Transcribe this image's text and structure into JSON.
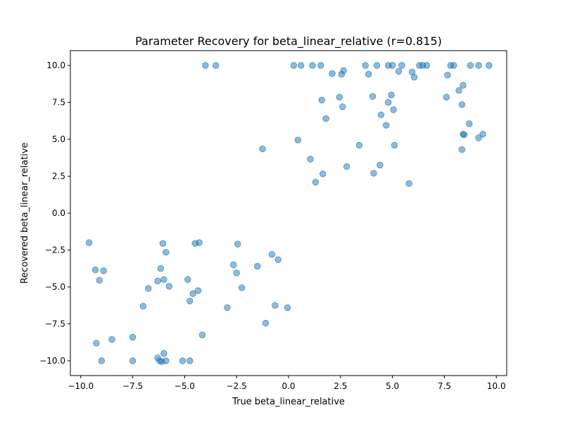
{
  "chart_data": {
    "type": "scatter",
    "title": "Parameter Recovery for beta_linear_relative (r=0.815)",
    "xlabel": "True beta_linear_relative",
    "ylabel": "Recovered beta_linear_relative",
    "xlim": [
      -10.5,
      10.5
    ],
    "ylim": [
      -11.0,
      11.0
    ],
    "xticks": [
      -10.0,
      -7.5,
      -5.0,
      -2.5,
      0.0,
      2.5,
      5.0,
      7.5,
      10.0
    ],
    "xtick_labels": [
      "−10.0",
      "−7.5",
      "−5.0",
      "−2.5",
      "0.0",
      "2.5",
      "5.0",
      "7.5",
      "10.0"
    ],
    "yticks": [
      -10.0,
      -7.5,
      -5.0,
      -2.5,
      0.0,
      2.5,
      5.0,
      7.5,
      10.0
    ],
    "ytick_labels": [
      "−10.0",
      "−7.5",
      "−5.0",
      "−2.5",
      "0.0",
      "2.5",
      "5.0",
      "7.5",
      "10.0"
    ],
    "grid": false,
    "marker_color": "#1f77b4",
    "marker_alpha": 0.5,
    "points": [
      {
        "x": -9.6,
        "y": -2.0
      },
      {
        "x": -9.3,
        "y": -3.85
      },
      {
        "x": -9.1,
        "y": -4.55
      },
      {
        "x": -8.9,
        "y": -3.9
      },
      {
        "x": -9.25,
        "y": -8.8
      },
      {
        "x": -9.0,
        "y": -10.0
      },
      {
        "x": -8.5,
        "y": -8.55
      },
      {
        "x": -7.5,
        "y": -8.4
      },
      {
        "x": -7.5,
        "y": -10.0
      },
      {
        "x": -7.0,
        "y": -6.3
      },
      {
        "x": -6.75,
        "y": -5.1
      },
      {
        "x": -6.3,
        "y": -4.6
      },
      {
        "x": -6.15,
        "y": -3.75
      },
      {
        "x": -6.05,
        "y": -2.05
      },
      {
        "x": -6.0,
        "y": -4.5
      },
      {
        "x": -5.9,
        "y": -2.65
      },
      {
        "x": -5.75,
        "y": -4.95
      },
      {
        "x": -6.3,
        "y": -9.8
      },
      {
        "x": -6.2,
        "y": -10.0
      },
      {
        "x": -6.1,
        "y": -10.05
      },
      {
        "x": -6.0,
        "y": -9.5
      },
      {
        "x": -5.9,
        "y": -10.0
      },
      {
        "x": -5.1,
        "y": -10.0
      },
      {
        "x": -4.75,
        "y": -10.0
      },
      {
        "x": -4.85,
        "y": -4.5
      },
      {
        "x": -4.75,
        "y": -5.95
      },
      {
        "x": -4.6,
        "y": -5.45
      },
      {
        "x": -4.5,
        "y": -2.05
      },
      {
        "x": -4.3,
        "y": -2.0
      },
      {
        "x": -4.35,
        "y": -5.25
      },
      {
        "x": -4.15,
        "y": -8.25
      },
      {
        "x": -2.95,
        "y": -6.4
      },
      {
        "x": -2.65,
        "y": -3.5
      },
      {
        "x": -2.5,
        "y": -4.05
      },
      {
        "x": -2.45,
        "y": -2.1
      },
      {
        "x": -2.25,
        "y": -5.05
      },
      {
        "x": -1.5,
        "y": -3.6
      },
      {
        "x": -1.1,
        "y": -7.45
      },
      {
        "x": -0.8,
        "y": -2.8
      },
      {
        "x": -0.65,
        "y": -6.25
      },
      {
        "x": -0.5,
        "y": -3.15
      },
      {
        "x": -0.05,
        "y": -6.4
      },
      {
        "x": -4.0,
        "y": 10.0
      },
      {
        "x": -3.5,
        "y": 10.0
      },
      {
        "x": -1.25,
        "y": 4.35
      },
      {
        "x": 0.25,
        "y": 10.0
      },
      {
        "x": 0.6,
        "y": 10.0
      },
      {
        "x": 0.45,
        "y": 4.95
      },
      {
        "x": 1.05,
        "y": 3.65
      },
      {
        "x": 1.15,
        "y": 10.0
      },
      {
        "x": 1.3,
        "y": 2.1
      },
      {
        "x": 1.55,
        "y": 10.0
      },
      {
        "x": 1.65,
        "y": 2.65
      },
      {
        "x": 1.6,
        "y": 7.65
      },
      {
        "x": 1.8,
        "y": 6.4
      },
      {
        "x": 2.1,
        "y": 9.45
      },
      {
        "x": 2.45,
        "y": 7.85
      },
      {
        "x": 2.55,
        "y": 9.4
      },
      {
        "x": 2.65,
        "y": 9.65
      },
      {
        "x": 2.6,
        "y": 7.2
      },
      {
        "x": 2.8,
        "y": 3.15
      },
      {
        "x": 3.4,
        "y": 4.6
      },
      {
        "x": 3.7,
        "y": 10.0
      },
      {
        "x": 3.85,
        "y": 9.4
      },
      {
        "x": 4.05,
        "y": 7.9
      },
      {
        "x": 4.1,
        "y": 2.7
      },
      {
        "x": 4.25,
        "y": 10.0
      },
      {
        "x": 4.4,
        "y": 3.25
      },
      {
        "x": 4.45,
        "y": 6.65
      },
      {
        "x": 4.7,
        "y": 5.95
      },
      {
        "x": 4.8,
        "y": 7.5
      },
      {
        "x": 4.8,
        "y": 10.0
      },
      {
        "x": 4.95,
        "y": 8.0
      },
      {
        "x": 5.0,
        "y": 10.0
      },
      {
        "x": 5.05,
        "y": 7.0
      },
      {
        "x": 5.1,
        "y": 4.6
      },
      {
        "x": 5.3,
        "y": 9.6
      },
      {
        "x": 5.45,
        "y": 10.0
      },
      {
        "x": 5.8,
        "y": 2.0
      },
      {
        "x": 5.95,
        "y": 9.55
      },
      {
        "x": 6.05,
        "y": 9.2
      },
      {
        "x": 6.3,
        "y": 10.0
      },
      {
        "x": 6.45,
        "y": 10.0
      },
      {
        "x": 6.65,
        "y": 10.0
      },
      {
        "x": 7.6,
        "y": 7.85
      },
      {
        "x": 7.65,
        "y": 9.35
      },
      {
        "x": 7.8,
        "y": 10.0
      },
      {
        "x": 7.95,
        "y": 10.0
      },
      {
        "x": 8.2,
        "y": 8.3
      },
      {
        "x": 8.35,
        "y": 7.35
      },
      {
        "x": 8.4,
        "y": 8.65
      },
      {
        "x": 8.4,
        "y": 5.35
      },
      {
        "x": 8.45,
        "y": 5.3
      },
      {
        "x": 8.35,
        "y": 4.3
      },
      {
        "x": 8.7,
        "y": 6.05
      },
      {
        "x": 8.75,
        "y": 10.0
      },
      {
        "x": 9.15,
        "y": 10.0
      },
      {
        "x": 9.15,
        "y": 5.1
      },
      {
        "x": 9.35,
        "y": 5.35
      },
      {
        "x": 9.65,
        "y": 10.0
      }
    ]
  }
}
